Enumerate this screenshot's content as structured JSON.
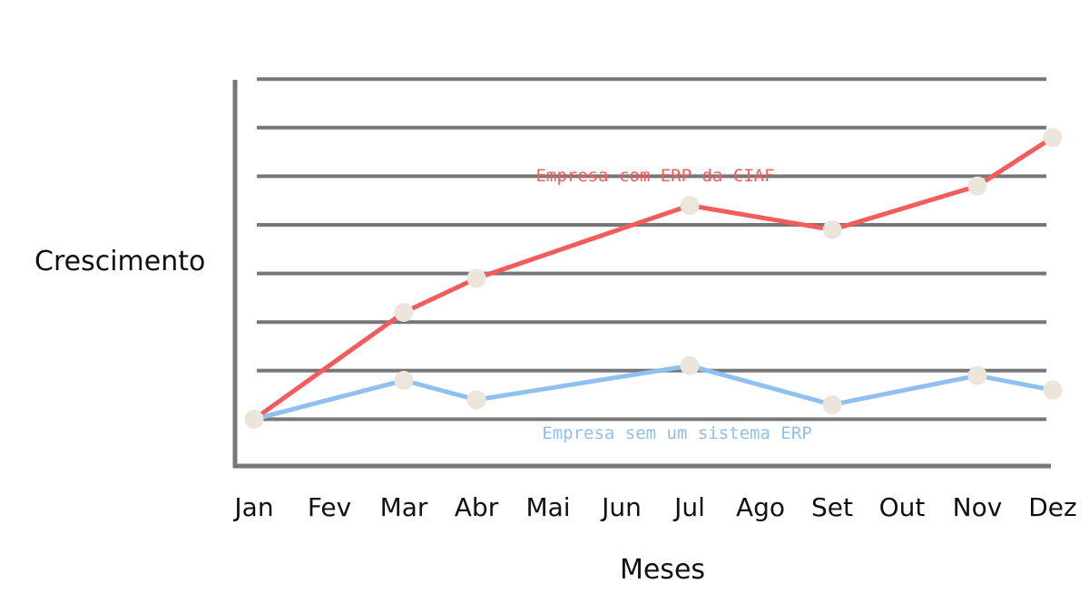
{
  "chart_data": {
    "type": "line",
    "title": "",
    "xlabel": "Meses",
    "ylabel": "Crescimento",
    "categories": [
      "Jan",
      "Fev",
      "Mar",
      "Abr",
      "Mai",
      "Jun",
      "Jul",
      "Ago",
      "Set",
      "Out",
      "Nov",
      "Dez"
    ],
    "series": [
      {
        "name": "Empresa com ERP da CIAF",
        "color": "#f45b5b",
        "points": [
          {
            "x": "Jan",
            "y": 1.0
          },
          {
            "x": "Mar",
            "y": 3.2
          },
          {
            "x": "Abr",
            "y": 3.9
          },
          {
            "x": "Jul",
            "y": 5.4
          },
          {
            "x": "Set",
            "y": 4.9
          },
          {
            "x": "Nov",
            "y": 5.8
          },
          {
            "x": "Dez",
            "y": 6.8
          }
        ]
      },
      {
        "name": "Empresa sem um sistema ERP",
        "color": "#8ec1ef",
        "points": [
          {
            "x": "Jan",
            "y": 1.0
          },
          {
            "x": "Mar",
            "y": 1.8
          },
          {
            "x": "Abr",
            "y": 1.4
          },
          {
            "x": "Jul",
            "y": 2.1
          },
          {
            "x": "Set",
            "y": 1.3
          },
          {
            "x": "Nov",
            "y": 1.9
          },
          {
            "x": "Dez",
            "y": 1.6
          }
        ]
      }
    ],
    "ylim": [
      0,
      8.2
    ],
    "gridlines": [
      1,
      2,
      3,
      4,
      5,
      6,
      7,
      8
    ],
    "grid": true,
    "marker_color": "#ebe5dc",
    "axis_color": "#777777",
    "grid_color": "#777777"
  }
}
